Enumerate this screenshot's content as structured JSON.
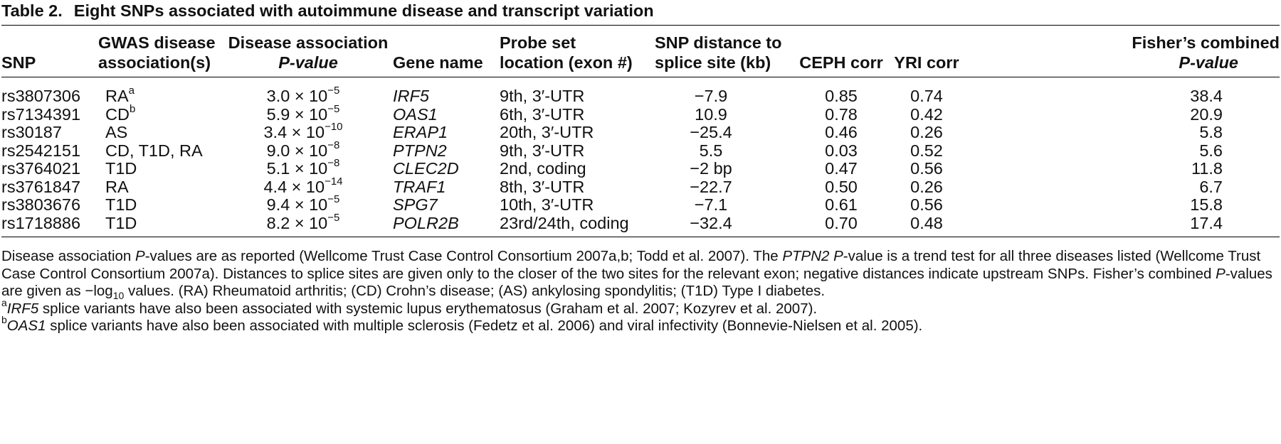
{
  "table": {
    "label": "Table 2.",
    "caption": "Eight SNPs associated with autoimmune disease and transcript variation",
    "headers": [
      {
        "line1": "",
        "line2": "SNP"
      },
      {
        "line1": "GWAS disease",
        "line2": "association(s)"
      },
      {
        "line1": "Disease association",
        "line2": "P-value"
      },
      {
        "line1": "",
        "line2": "Gene name"
      },
      {
        "line1": "Probe set",
        "line2": "location (exon #)"
      },
      {
        "line1": "SNP distance to",
        "line2": "splice site (kb)"
      },
      {
        "line1": "",
        "line2": "CEPH corr"
      },
      {
        "line1": "",
        "line2": "YRI corr"
      },
      {
        "line1": "Fisher’s combined",
        "line2": "P-value"
      }
    ],
    "rows": [
      {
        "snp": "rs3807306",
        "disease": "RA",
        "disease_note": "a",
        "pval_mant": "3.0",
        "pval_exp": "−5",
        "gene": "IRF5",
        "location": "9th, 3′-UTR",
        "distance": "−7.9",
        "ceph": "0.85",
        "yri": "0.74",
        "fisher": "38.4"
      },
      {
        "snp": "rs7134391",
        "disease": "CD",
        "disease_note": "b",
        "pval_mant": "5.9",
        "pval_exp": "−5",
        "gene": "OAS1",
        "location": "6th, 3′-UTR",
        "distance": "10.9",
        "ceph": "0.78",
        "yri": "0.42",
        "fisher": "20.9"
      },
      {
        "snp": "rs30187",
        "disease": "AS",
        "disease_note": "",
        "pval_mant": "3.4",
        "pval_exp": "−10",
        "gene": "ERAP1",
        "location": "20th, 3′-UTR",
        "distance": "−25.4",
        "ceph": "0.46",
        "yri": "0.26",
        "fisher": "5.8"
      },
      {
        "snp": "rs2542151",
        "disease": "CD, T1D, RA",
        "disease_note": "",
        "pval_mant": "9.0",
        "pval_exp": "−8",
        "gene": "PTPN2",
        "location": "9th, 3′-UTR",
        "distance": "5.5",
        "ceph": "0.03",
        "yri": "0.52",
        "fisher": "5.6"
      },
      {
        "snp": "rs3764021",
        "disease": "T1D",
        "disease_note": "",
        "pval_mant": "5.1",
        "pval_exp": "−8",
        "gene": "CLEC2D",
        "location": "2nd, coding",
        "distance": "−2 bp",
        "ceph": "0.47",
        "yri": "0.56",
        "fisher": "11.8"
      },
      {
        "snp": "rs3761847",
        "disease": "RA",
        "disease_note": "",
        "pval_mant": "4.4",
        "pval_exp": "−14",
        "gene": "TRAF1",
        "location": "8th, 3′-UTR",
        "distance": "−22.7",
        "ceph": "0.50",
        "yri": "0.26",
        "fisher": "6.7"
      },
      {
        "snp": "rs3803676",
        "disease": "T1D",
        "disease_note": "",
        "pval_mant": "9.4",
        "pval_exp": "−5",
        "gene": "SPG7",
        "location": "10th, 3′-UTR",
        "distance": "−7.1",
        "ceph": "0.61",
        "yri": "0.56",
        "fisher": "15.8"
      },
      {
        "snp": "rs1718886",
        "disease": "T1D",
        "disease_note": "",
        "pval_mant": "8.2",
        "pval_exp": "−5",
        "gene": "POLR2B",
        "location": "23rd/24th, coding",
        "distance": "−32.4",
        "ceph": "0.70",
        "yri": "0.48",
        "fisher": "17.4"
      }
    ],
    "times_sign": " × 10"
  },
  "notes": {
    "p1_a": "Disease association ",
    "p1_b": "P",
    "p1_c": "-values are as reported (Wellcome Trust Case Control Consortium 2007a,b; Todd et al. 2007). The ",
    "p1_d": "PTPN2 P",
    "p1_e": "-value is a trend test for all three diseases listed (Wellcome Trust Case Control Consortium 2007a). Distances to splice sites are given only to the closer of the two sites for the relevant exon; negative distances indicate upstream SNPs. Fisher’s combined ",
    "p1_f": "P",
    "p1_g": "-values are given as −log",
    "p1_sub": "10",
    "p1_h": " values. (RA) Rheumatoid arthritis; (CD) Crohn’s disease; (AS) ankylosing spondylitis; (T1D) Type I diabetes.",
    "fa_mark": "a",
    "fa_gene": "IRF5",
    "fa_text": " splice variants have also been associated with systemic lupus erythematosus (Graham et al. 2007; Kozyrev et al. 2007).",
    "fb_mark": "b",
    "fb_gene": "OAS1",
    "fb_text": " splice variants have also been associated with multiple sclerosis (Fedetz et al. 2006) and viral infectivity (Bonnevie-Nielsen et al. 2005)."
  }
}
